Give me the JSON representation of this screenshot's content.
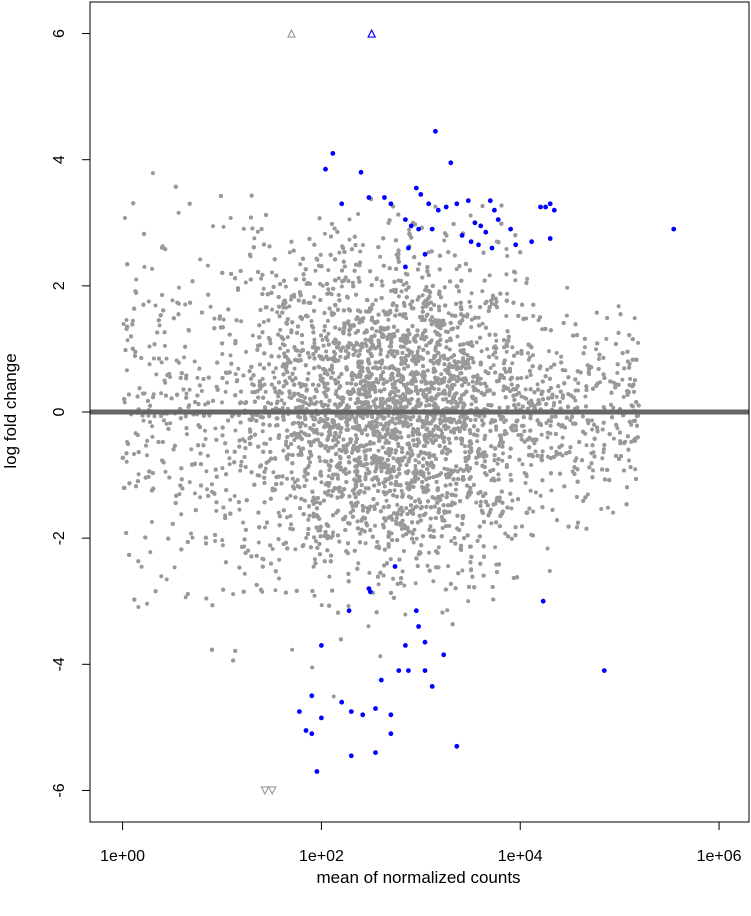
{
  "chart_data": {
    "type": "scatter",
    "title": "",
    "xlabel": "mean of normalized counts",
    "ylabel": "log fold change",
    "x_scale": "log10",
    "xlim": [
      0.47,
      2000000
    ],
    "ylim": [
      -6.5,
      6.5
    ],
    "x_ticks": [
      1,
      100,
      10000,
      1000000
    ],
    "x_tick_labels": [
      "1e+00",
      "1e+02",
      "1e+04",
      "1e+06"
    ],
    "y_ticks": [
      -6,
      -4,
      -2,
      0,
      2,
      4,
      6
    ],
    "y_tick_labels": [
      "-6",
      "-4",
      "-2",
      "0",
      "2",
      "4",
      "6"
    ],
    "reference_line_y": 0,
    "colors": {
      "not_significant": "#999999",
      "significant": "#0000ff",
      "reference_line": "#666666"
    },
    "background_points": {
      "description_of_cloud": "dense grey cloud of not-significant genes",
      "x_log10_range": [
        0,
        5.2
      ],
      "center_x_log10": 2.7,
      "y_spread": 1.2
    },
    "series": [
      {
        "name": "",
        "color": "#0000ff",
        "points": [
          [
            130,
            4.1
          ],
          [
            110,
            3.85
          ],
          [
            1400,
            4.45
          ],
          [
            2000,
            3.95
          ],
          [
            250,
            3.8
          ],
          [
            160,
            3.3
          ],
          [
            300,
            3.4
          ],
          [
            430,
            3.4
          ],
          [
            500,
            3.3
          ],
          [
            900,
            3.55
          ],
          [
            1000,
            3.45
          ],
          [
            1200,
            3.3
          ],
          [
            700,
            3.05
          ],
          [
            800,
            2.95
          ],
          [
            950,
            2.9
          ],
          [
            1300,
            2.9
          ],
          [
            1500,
            3.2
          ],
          [
            1800,
            3.25
          ],
          [
            2300,
            3.3
          ],
          [
            3000,
            3.35
          ],
          [
            3500,
            3.0
          ],
          [
            4000,
            2.95
          ],
          [
            5000,
            3.35
          ],
          [
            5500,
            3.2
          ],
          [
            6000,
            3.05
          ],
          [
            4500,
            2.85
          ],
          [
            3200,
            2.7
          ],
          [
            3800,
            2.65
          ],
          [
            5200,
            2.6
          ],
          [
            2600,
            2.8
          ],
          [
            1100,
            2.5
          ],
          [
            750,
            2.6
          ],
          [
            8000,
            2.9
          ],
          [
            9000,
            2.65
          ],
          [
            16000,
            3.25
          ],
          [
            18000,
            3.25
          ],
          [
            20000,
            3.3
          ],
          [
            22000,
            3.2
          ],
          [
            13000,
            2.7
          ],
          [
            20000,
            2.75
          ],
          [
            350000,
            2.9
          ],
          [
            700,
            2.3
          ],
          [
            70000,
            -4.1
          ],
          [
            17000,
            -3.0
          ],
          [
            300,
            -2.8
          ],
          [
            310,
            -2.85
          ],
          [
            550,
            -2.45
          ],
          [
            900,
            -3.15
          ],
          [
            950,
            -3.4
          ],
          [
            190,
            -3.15
          ],
          [
            100,
            -3.7
          ],
          [
            700,
            -3.7
          ],
          [
            1100,
            -3.65
          ],
          [
            1700,
            -3.85
          ],
          [
            600,
            -4.1
          ],
          [
            750,
            -4.1
          ],
          [
            1100,
            -4.1
          ],
          [
            1300,
            -4.35
          ],
          [
            400,
            -4.25
          ],
          [
            60,
            -4.75
          ],
          [
            80,
            -4.5
          ],
          [
            100,
            -4.85
          ],
          [
            160,
            -4.6
          ],
          [
            200,
            -4.75
          ],
          [
            260,
            -4.8
          ],
          [
            350,
            -4.7
          ],
          [
            500,
            -4.8
          ],
          [
            70,
            -5.05
          ],
          [
            80,
            -5.1
          ],
          [
            500,
            -5.1
          ],
          [
            90,
            -5.7
          ],
          [
            200,
            -5.45
          ],
          [
            350,
            -5.4
          ],
          [
            2300,
            -5.3
          ]
        ]
      }
    ],
    "clipped_points": [
      {
        "x": 50,
        "y": 6,
        "direction": "up",
        "color": "#999999"
      },
      {
        "x": 320,
        "y": 6,
        "direction": "up",
        "color": "#0000ff"
      },
      {
        "x": 27,
        "y": -6,
        "direction": "down",
        "color": "#999999"
      },
      {
        "x": 32,
        "y": -6,
        "direction": "down",
        "color": "#999999"
      }
    ]
  }
}
